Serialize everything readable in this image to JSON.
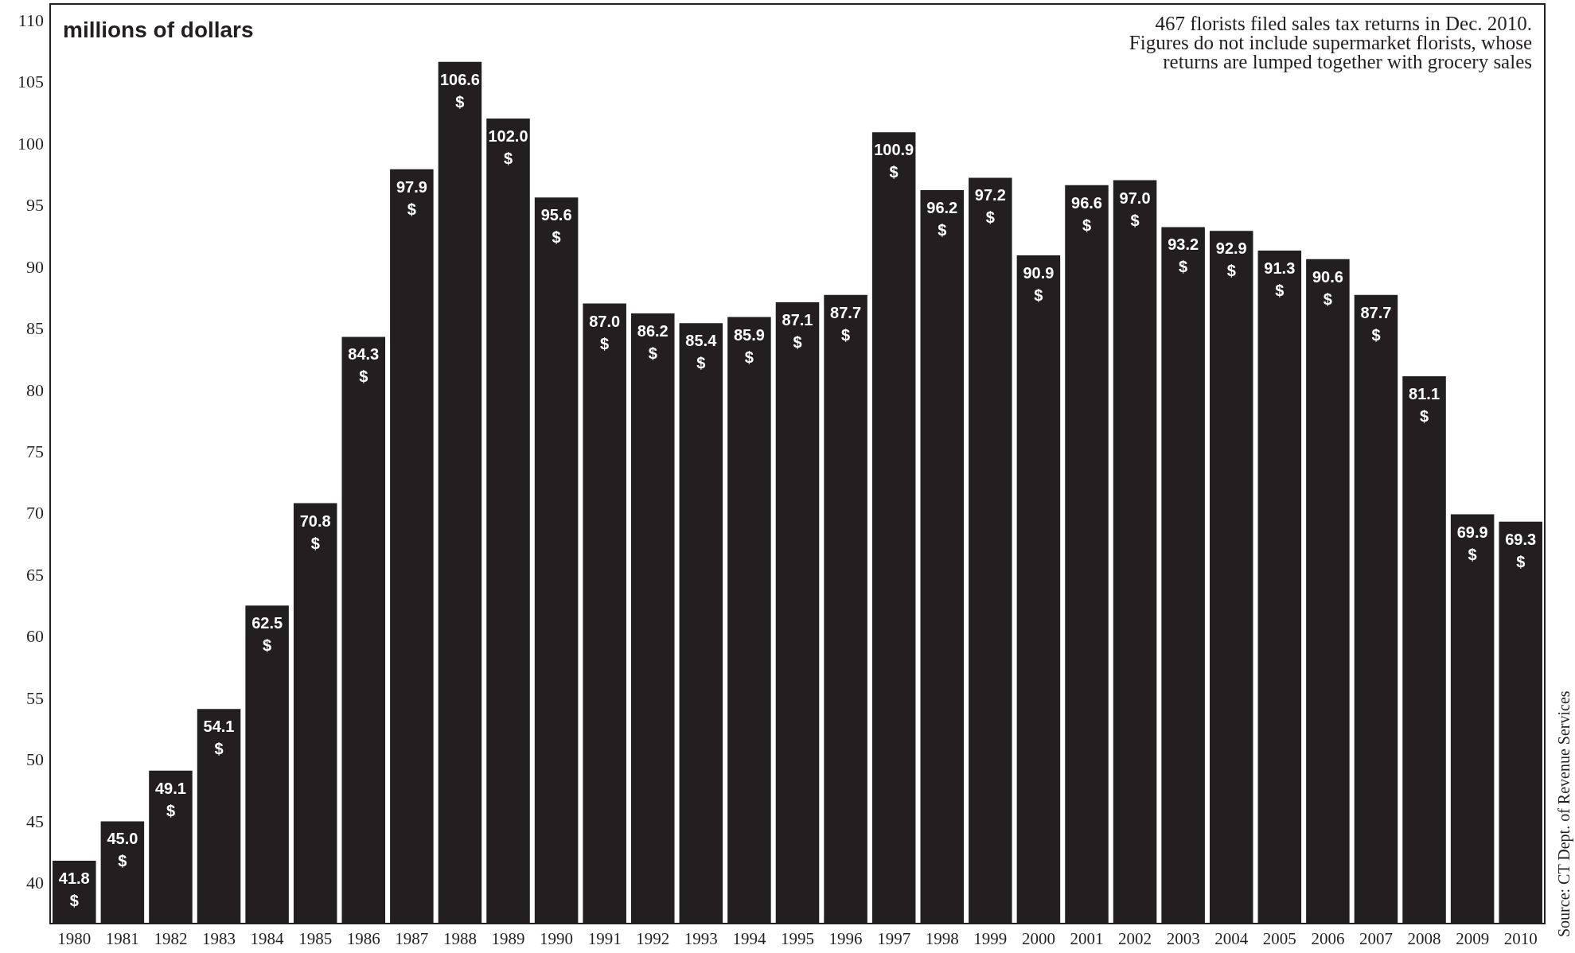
{
  "chart_data": {
    "type": "bar",
    "ylabel": "millions of dollars",
    "categories": [
      "1980",
      "1981",
      "1982",
      "1983",
      "1984",
      "1985",
      "1986",
      "1987",
      "1988",
      "1989",
      "1990",
      "1991",
      "1992",
      "1993",
      "1994",
      "1995",
      "1996",
      "1997",
      "1998",
      "1999",
      "2000",
      "2001",
      "2002",
      "2003",
      "2004",
      "2005",
      "2006",
      "2007",
      "2008",
      "2009",
      "2010"
    ],
    "values": [
      41.8,
      45.0,
      49.1,
      54.1,
      62.5,
      70.8,
      84.3,
      97.9,
      106.6,
      102.0,
      95.6,
      87.0,
      86.2,
      85.4,
      85.9,
      87.1,
      87.7,
      100.9,
      96.2,
      97.2,
      90.9,
      96.6,
      97.0,
      93.2,
      92.9,
      91.3,
      90.6,
      87.7,
      81.1,
      69.9,
      69.3
    ],
    "value_labels": [
      "41.8\n$",
      "45.0\n$",
      "49.1\n$",
      "54.1\n$",
      "62.5\n$",
      "70.8\n$",
      "84.3\n$",
      "97.9\n$",
      "106.6\n$",
      "102.0\n$",
      "95.6\n$",
      "87.0\n$",
      "86.2\n$",
      "85.4\n$",
      "85.9\n$",
      "87.1\n$",
      "87.7\n$",
      "100.9\n$",
      "96.2\n$",
      "97.2\n$",
      "90.9\n$",
      "96.6\n$",
      "97.0\n$",
      "93.2\n$",
      "92.9\n$",
      "91.3\n$",
      "90.6\n$",
      "87.7\n$",
      "81.1\n$",
      "69.9\n$",
      "69.3\n$"
    ],
    "color": "#231f20",
    "ylim": [
      36.7,
      111.3
    ],
    "yticks": [
      40,
      45,
      50,
      55,
      60,
      65,
      70,
      75,
      80,
      85,
      90,
      95,
      100,
      105,
      110
    ],
    "grid": false,
    "annotations": [
      "467 florists filed sales tax returns in Dec. 2010.\nFigures do not include supermarket florists, whose\nreturns are lumped together with grocery sales",
      "Source: CT Dept. of Revenue Services"
    ]
  }
}
